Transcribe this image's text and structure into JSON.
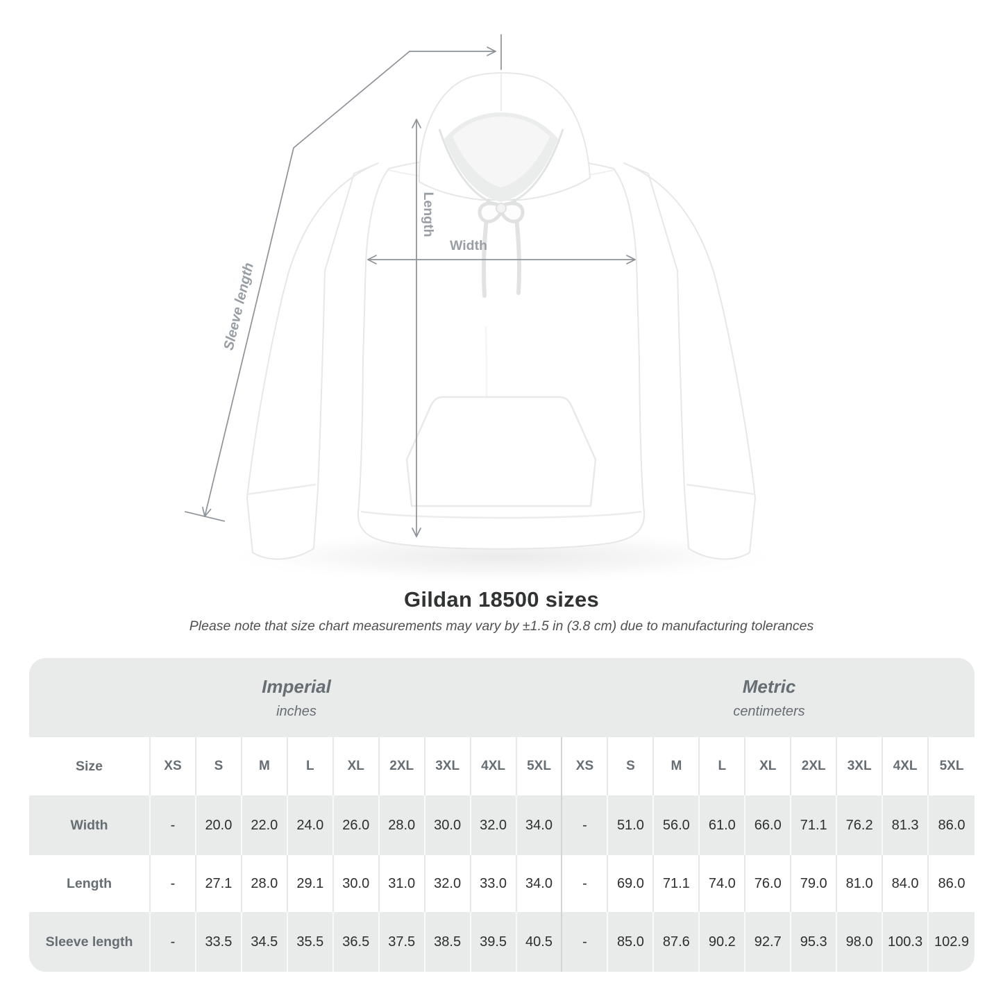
{
  "title": "Gildan 18500 sizes",
  "note": "Please note that size chart measurements may vary by ±1.5 in (3.8 cm) due to manufacturing tolerances",
  "figure": {
    "width_label": "Width",
    "length_label": "Length",
    "sleeve_label": "Sleeve length"
  },
  "table": {
    "size_label": "Size",
    "groups": [
      {
        "name": "Imperial",
        "unit": "inches"
      },
      {
        "name": "Metric",
        "unit": "centimeters"
      }
    ],
    "sizes": [
      "XS",
      "S",
      "M",
      "L",
      "XL",
      "2XL",
      "3XL",
      "4XL",
      "5XL"
    ],
    "rows": [
      {
        "label": "Width",
        "imperial": [
          "-",
          "20.0",
          "22.0",
          "24.0",
          "26.0",
          "28.0",
          "30.0",
          "32.0",
          "34.0"
        ],
        "metric": [
          "-",
          "51.0",
          "56.0",
          "61.0",
          "66.0",
          "71.1",
          "76.2",
          "81.3",
          "86.0"
        ]
      },
      {
        "label": "Length",
        "imperial": [
          "-",
          "27.1",
          "28.0",
          "29.1",
          "30.0",
          "31.0",
          "32.0",
          "33.0",
          "34.0"
        ],
        "metric": [
          "-",
          "69.0",
          "71.1",
          "74.0",
          "76.0",
          "79.0",
          "81.0",
          "84.0",
          "86.0"
        ]
      },
      {
        "label": "Sleeve length",
        "imperial": [
          "-",
          "33.5",
          "34.5",
          "35.5",
          "36.5",
          "37.5",
          "38.5",
          "39.5",
          "40.5"
        ],
        "metric": [
          "-",
          "85.0",
          "87.6",
          "90.2",
          "92.7",
          "95.3",
          "98.0",
          "100.3",
          "102.9"
        ]
      }
    ]
  },
  "colors": {
    "band_gray": "#e9eaea",
    "header_text": "#666d73",
    "value_text": "#2c2e30",
    "measure_line": "#8c9298",
    "measure_label": "#989ea4"
  }
}
